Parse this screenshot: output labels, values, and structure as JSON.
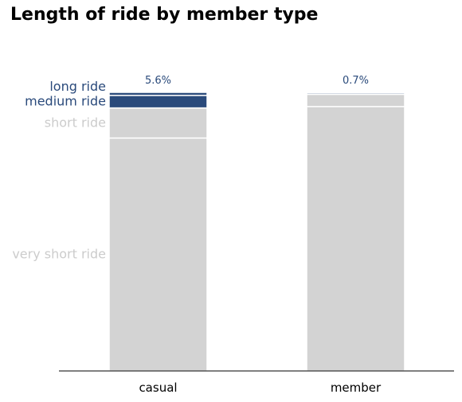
{
  "chart_data": {
    "type": "bar",
    "stacked": true,
    "normalized": true,
    "title": "Length of ride by member type",
    "xlabel": "",
    "ylabel": "",
    "ylim": [
      0,
      100
    ],
    "categories": [
      "casual",
      "member"
    ],
    "series": [
      {
        "name": "very short ride",
        "values": [
          83.6,
          94.9
        ],
        "color": "#d3d3d3",
        "label_color": "#cccccc"
      },
      {
        "name": "short ride",
        "values": [
          10.8,
          4.4
        ],
        "color": "#d3d3d3",
        "label_color": "#cccccc"
      },
      {
        "name": "medium ride",
        "values": [
          4.5,
          0.5
        ],
        "color": "#2a4a7b",
        "label_color": "#2a4a7b"
      },
      {
        "name": "long ride",
        "values": [
          1.1,
          0.2
        ],
        "color": "#2a4a7b",
        "label_color": "#2a4a7b"
      }
    ],
    "total_labels": [
      "5.6%",
      "0.7%"
    ],
    "total_label_color": "#2a4a7b",
    "grid": false,
    "legend": "none"
  }
}
